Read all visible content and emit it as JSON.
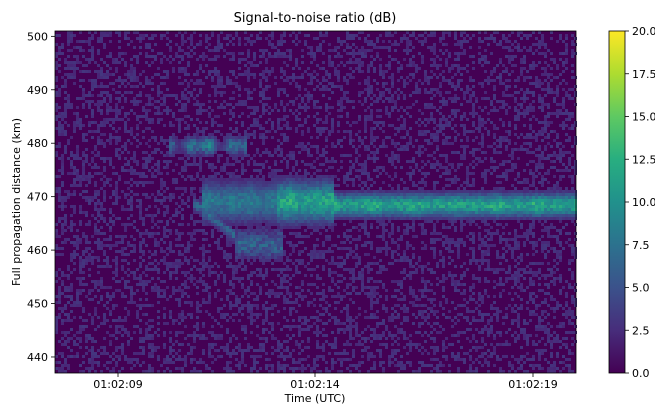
{
  "chart_data": {
    "type": "heatmap",
    "title": "Signal-to-noise ratio (dB)",
    "xlabel": "Time (UTC)",
    "ylabel": "Full propagation distance (km)",
    "x_ticks": [
      "01:02:09",
      "01:02:14",
      "01:02:19"
    ],
    "y_ticks": [
      440,
      450,
      460,
      470,
      480,
      490,
      500
    ],
    "ylim": [
      437,
      501
    ],
    "colorbar": {
      "colormap": "viridis",
      "vmin": 0.0,
      "vmax": 20.0,
      "ticks": [
        "0.0",
        "2.5",
        "5.0",
        "7.5",
        "10.0",
        "12.5",
        "15.0",
        "17.5",
        "20.0"
      ]
    },
    "features": [
      {
        "description": "weak echo start",
        "time_start": "01:02:10.4",
        "time_end": "01:02:12.3",
        "distance_km_center": 480,
        "peak_snr_db": 13
      },
      {
        "description": "descending trace",
        "time_start": "01:02:11.0",
        "time_end": "01:02:12.0",
        "distance_km_center": 465,
        "peak_snr_db": 8
      },
      {
        "description": "main echo band",
        "time_start": "01:02:11.2",
        "time_end": "01:02:20.3",
        "distance_km_center": 468,
        "peak_snr_db": 16
      }
    ]
  }
}
